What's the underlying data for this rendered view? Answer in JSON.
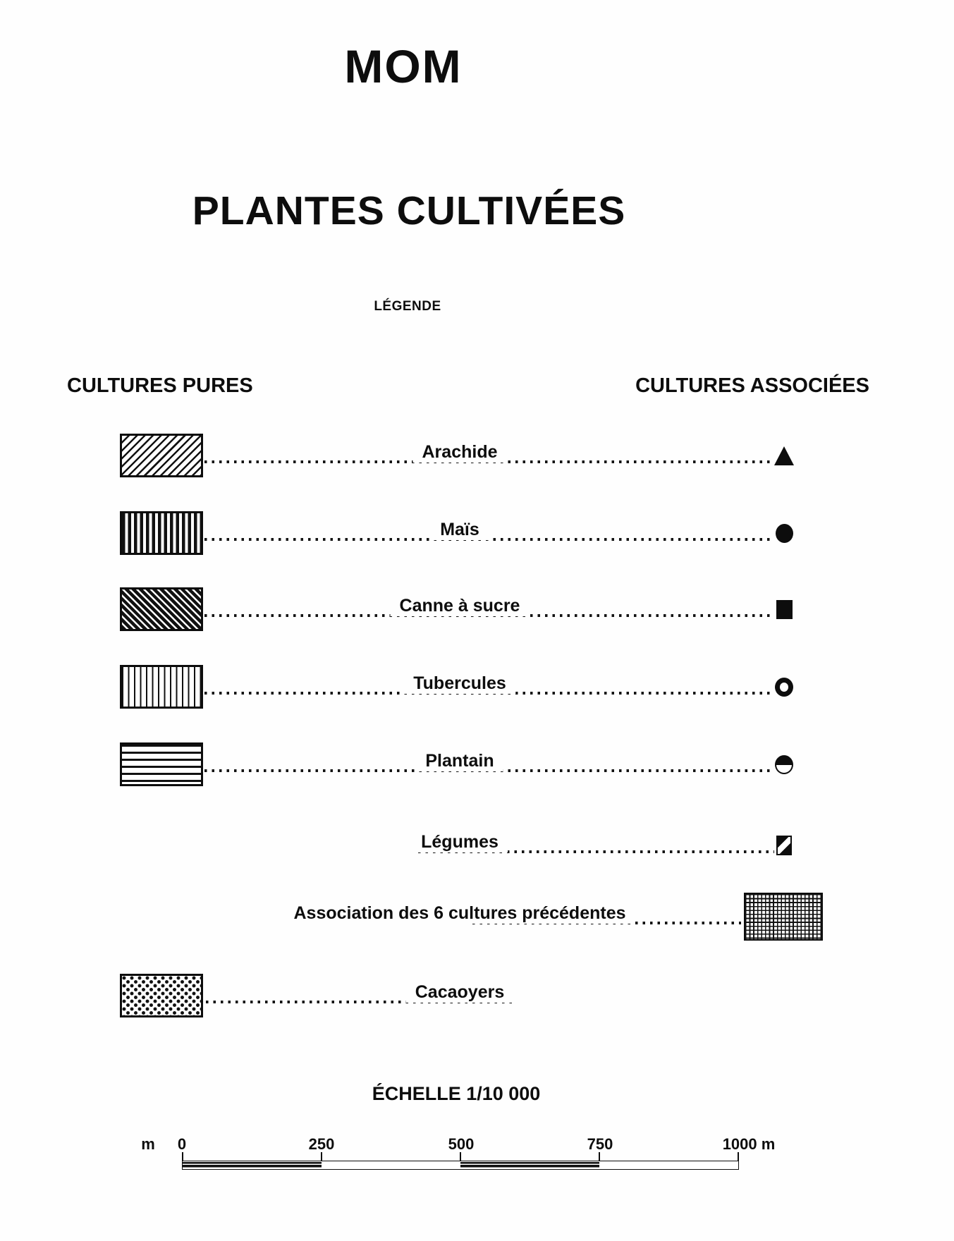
{
  "page": {
    "title": "MOM",
    "subtitle": "PLANTES CULTIVÉES",
    "legend_heading": "LÉGENDE",
    "left_column_heading": "CULTURES PURES",
    "right_column_heading": "CULTURES ASSOCIÉES"
  },
  "legend": {
    "items": [
      {
        "label": "Arachide",
        "pure_pattern": "forward-diagonal-hatch",
        "associated_symbol": "filled-triangle"
      },
      {
        "label": "Maïs",
        "pure_pattern": "thick-vertical-stripes",
        "associated_symbol": "filled-circle"
      },
      {
        "label": "Canne à sucre",
        "pure_pattern": "dense-back-diagonal-hatch",
        "associated_symbol": "filled-square"
      },
      {
        "label": "Tubercules",
        "pure_pattern": "thin-vertical-lines",
        "associated_symbol": "open-circle"
      },
      {
        "label": "Plantain",
        "pure_pattern": "horizontal-lines",
        "associated_symbol": "top-half-filled-circle"
      },
      {
        "label": "Légumes",
        "pure_pattern": null,
        "associated_symbol": "diagonal-split-square"
      },
      {
        "label": "Association des 6 cultures précédentes",
        "pure_pattern": null,
        "associated_symbol": "fine-grid-crosshatch-swatch"
      },
      {
        "label": "Cacaoyers",
        "pure_pattern": "dot-stipple",
        "associated_symbol": null
      }
    ]
  },
  "scale": {
    "heading": "ÉCHELLE 1/10 000",
    "unit_label": "m",
    "tick_labels": [
      "0",
      "250",
      "500",
      "750",
      "1000 m"
    ]
  },
  "colors": {
    "ink": "#0d0d0d",
    "paper": "#fefefe"
  }
}
